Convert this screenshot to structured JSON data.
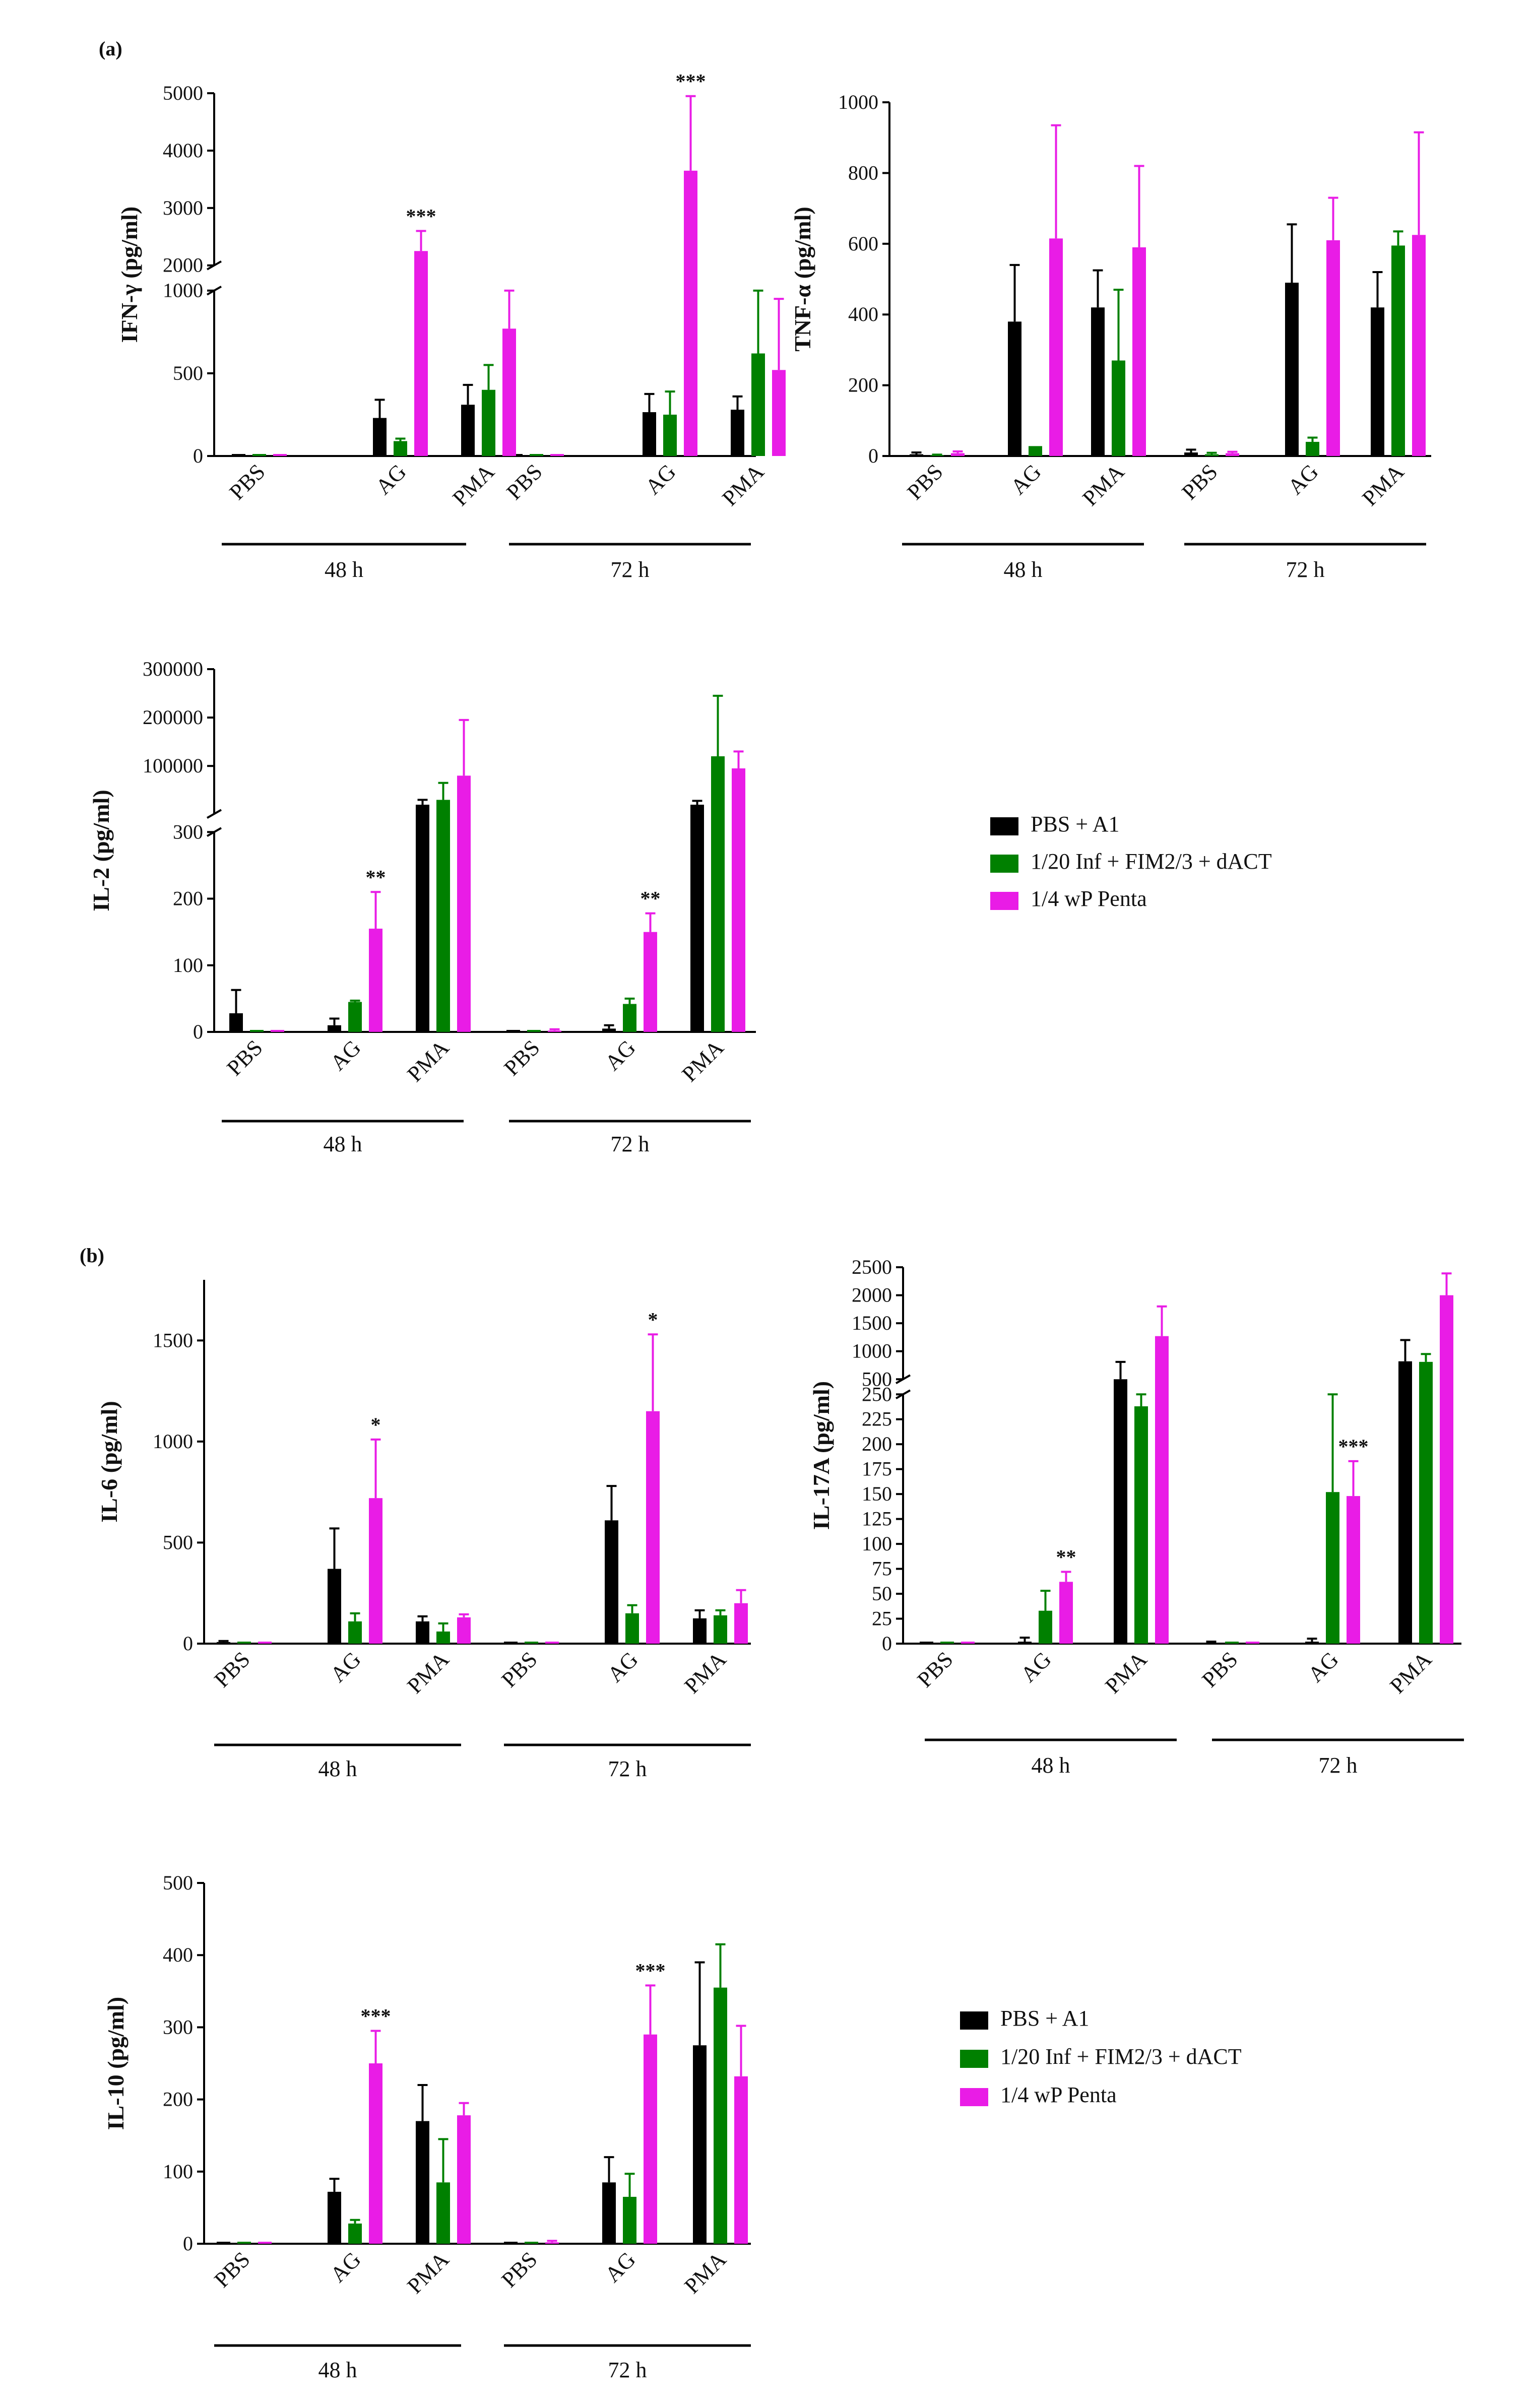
{
  "panel_labels": {
    "a": "(a)",
    "b": "(b)"
  },
  "legend": [
    {
      "label": "PBS + A1",
      "color": "#000000"
    },
    {
      "label": "1/20 Inf + FIM2/3 + dACT",
      "color": "#008000"
    },
    {
      "label": "1/4 wP Penta",
      "color": "#e91ce6"
    }
  ],
  "chart_data": [
    {
      "type": "bar",
      "id": "ifn",
      "title": "",
      "ylabel": "IFN-γ (pg/ml)",
      "categories": [
        "PBS",
        "AG",
        "PMA",
        "PBS",
        "AG",
        "PMA"
      ],
      "groups": [
        "48 h",
        "72 h"
      ],
      "series": [
        {
          "name": "PBS + A1",
          "values": [
            0,
            230,
            310,
            0,
            265,
            280
          ],
          "errors": [
            0,
            110,
            120,
            0,
            110,
            80
          ]
        },
        {
          "name": "1/20 Inf + FIM2/3 + dACT",
          "values": [
            0,
            90,
            400,
            0,
            250,
            620
          ],
          "errors": [
            0,
            15,
            150,
            0,
            140,
            400
          ]
        },
        {
          "name": "1/4 wP Penta",
          "values": [
            0,
            2250,
            770,
            0,
            3650,
            520
          ],
          "errors": [
            0,
            350,
            270,
            0,
            1300,
            430
          ]
        }
      ],
      "ylim": [
        0,
        5000
      ],
      "axis_break": [
        1000,
        2000
      ],
      "lower_ticks": [
        "0",
        "500",
        "1000"
      ],
      "upper_ticks": [
        "2000",
        "3000",
        "4000",
        "5000"
      ],
      "significance": [
        {
          "index": 1,
          "label": "***"
        },
        {
          "index": 4,
          "label": "***"
        }
      ]
    },
    {
      "type": "bar",
      "id": "tnf",
      "title": "",
      "ylabel": "TNF-α (pg/ml)",
      "categories": [
        "PBS",
        "AG",
        "PMA",
        "PBS",
        "AG",
        "PMA"
      ],
      "groups": [
        "48 h",
        "72 h"
      ],
      "series": [
        {
          "name": "PBS + A1",
          "values": [
            5,
            380,
            420,
            10,
            490,
            420
          ],
          "errors": [
            5,
            160,
            105,
            8,
            165,
            100
          ]
        },
        {
          "name": "1/20 Inf + FIM2/3 + dACT",
          "values": [
            2,
            28,
            270,
            5,
            40,
            595
          ],
          "errors": [
            2,
            0,
            200,
            4,
            12,
            40
          ]
        },
        {
          "name": "1/4 wP Penta",
          "values": [
            8,
            615,
            590,
            8,
            610,
            625
          ],
          "errors": [
            5,
            320,
            230,
            4,
            120,
            290
          ]
        }
      ],
      "ylim": [
        0,
        1000
      ],
      "ticks": [
        "0",
        "200",
        "400",
        "600",
        "800",
        "1000"
      ],
      "significance": []
    },
    {
      "type": "bar",
      "id": "il2",
      "title": "",
      "ylabel": "IL-2 (pg/ml)",
      "categories": [
        "PBS",
        "AG",
        "PMA",
        "PBS",
        "AG",
        "PMA"
      ],
      "groups": [
        "48 h",
        "72 h"
      ],
      "series": [
        {
          "name": "PBS + A1",
          "values": [
            28,
            10,
            20000,
            0,
            5,
            20000
          ],
          "errors": [
            35,
            10,
            10000,
            0,
            5,
            8000
          ]
        },
        {
          "name": "1/20 Inf + FIM2/3 + dACT",
          "values": [
            0,
            45,
            30000,
            0,
            42,
            120000
          ],
          "errors": [
            0,
            2,
            35000,
            0,
            8,
            125000
          ]
        },
        {
          "name": "1/4 wP Penta",
          "values": [
            0,
            155,
            80000,
            2,
            150,
            95000
          ],
          "errors": [
            0,
            55,
            115000,
            2,
            28,
            35000
          ]
        }
      ],
      "ylim": [
        0,
        300000
      ],
      "axis_break": [
        300,
        1000
      ],
      "lower_ticks": [
        "0",
        "100",
        "200",
        "300"
      ],
      "upper_ticks": [
        "100000",
        "200000",
        "300000"
      ],
      "significance": [
        {
          "index": 1,
          "label": "**"
        },
        {
          "index": 4,
          "label": "**"
        }
      ]
    },
    {
      "type": "bar",
      "id": "il6",
      "title": "",
      "ylabel": "IL-6 (pg/ml)",
      "categories": [
        "PBS",
        "AG",
        "PMA",
        "PBS",
        "AG",
        "PMA"
      ],
      "groups": [
        "48 h",
        "72 h"
      ],
      "series": [
        {
          "name": "PBS + A1",
          "values": [
            8,
            370,
            110,
            0,
            610,
            125
          ],
          "errors": [
            5,
            200,
            25,
            0,
            170,
            40
          ]
        },
        {
          "name": "1/20 Inf + FIM2/3 + dACT",
          "values": [
            0,
            110,
            60,
            0,
            150,
            140
          ],
          "errors": [
            0,
            40,
            40,
            0,
            40,
            25
          ]
        },
        {
          "name": "1/4 wP Penta",
          "values": [
            0,
            720,
            130,
            0,
            1150,
            200
          ],
          "errors": [
            0,
            290,
            15,
            0,
            380,
            65
          ]
        }
      ],
      "ylim": [
        0,
        1800
      ],
      "ticks": [
        "0",
        "500",
        "1000",
        "1500"
      ],
      "significance": [
        {
          "index": 1,
          "label": "*"
        },
        {
          "index": 4,
          "label": "*"
        }
      ]
    },
    {
      "type": "bar",
      "id": "il17",
      "title": "",
      "ylabel": "IL-17A (pg/ml)",
      "categories": [
        "PBS",
        "AG",
        "PMA",
        "PBS",
        "AG",
        "PMA"
      ],
      "groups": [
        "48 h",
        "72 h"
      ],
      "series": [
        {
          "name": "PBS + A1",
          "values": [
            0,
            2,
            500,
            1,
            2,
            820
          ],
          "errors": [
            0,
            4,
            310,
            1,
            3,
            380
          ]
        },
        {
          "name": "1/20 Inf + FIM2/3 + dACT",
          "values": [
            0,
            33,
            238,
            0,
            152,
            810
          ],
          "errors": [
            0,
            20,
            20,
            0,
            100,
            140
          ]
        },
        {
          "name": "1/4 wP Penta",
          "values": [
            0,
            62,
            1270,
            0,
            148,
            2000
          ],
          "errors": [
            0,
            10,
            530,
            0,
            35,
            390
          ]
        }
      ],
      "ylim": [
        0,
        2500
      ],
      "axis_break": [
        250,
        500
      ],
      "lower_ticks": [
        "0",
        "25",
        "50",
        "75",
        "100",
        "125",
        "150",
        "175",
        "200",
        "225",
        "250"
      ],
      "upper_ticks": [
        "500",
        "1000",
        "1500",
        "2000",
        "2500"
      ],
      "significance": [
        {
          "index": 1,
          "label": "**"
        },
        {
          "index": 4,
          "label": "***"
        }
      ]
    },
    {
      "type": "bar",
      "id": "il10",
      "title": "",
      "ylabel": "IL-10 (pg/ml)",
      "categories": [
        "PBS",
        "AG",
        "PMA",
        "PBS",
        "AG",
        "PMA"
      ],
      "groups": [
        "48 h",
        "72 h"
      ],
      "series": [
        {
          "name": "PBS + A1",
          "values": [
            0,
            72,
            170,
            0,
            85,
            275
          ],
          "errors": [
            0,
            18,
            50,
            0,
            35,
            115
          ]
        },
        {
          "name": "1/20 Inf + FIM2/3 + dACT",
          "values": [
            0,
            28,
            85,
            0,
            65,
            355
          ],
          "errors": [
            0,
            5,
            60,
            0,
            32,
            60
          ]
        },
        {
          "name": "1/4 wP Penta",
          "values": [
            0,
            250,
            178,
            2,
            290,
            232
          ],
          "errors": [
            0,
            45,
            17,
            2,
            68,
            70
          ]
        }
      ],
      "ylim": [
        0,
        500
      ],
      "ticks": [
        "0",
        "100",
        "200",
        "300",
        "400",
        "500"
      ],
      "significance": [
        {
          "index": 1,
          "label": "***"
        },
        {
          "index": 4,
          "label": "***"
        }
      ]
    }
  ]
}
